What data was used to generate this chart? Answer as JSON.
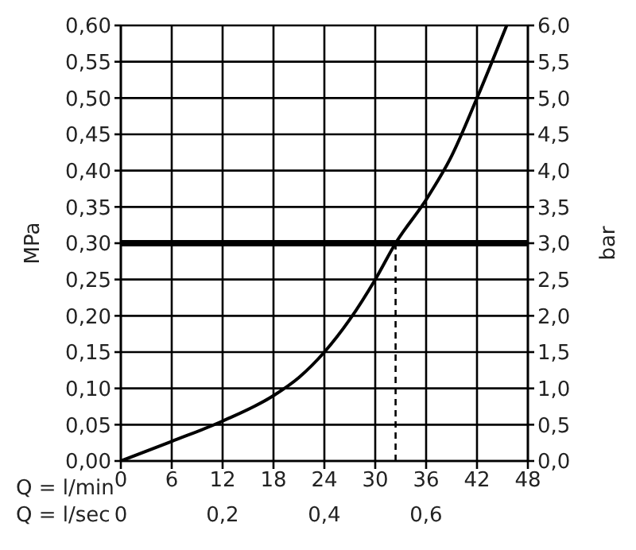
{
  "chart_data": {
    "type": "line",
    "xlabel": "Q = l/min",
    "x2label": "Q = l/sec",
    "ylabel": "MPa",
    "y2label": "bar",
    "series": [
      {
        "color": "#000000",
        "x": [
          0,
          6,
          12,
          18,
          21,
          24,
          27,
          30,
          32.4,
          36,
          39,
          42,
          45.5
        ],
        "values": [
          0,
          0.027,
          0.055,
          0.09,
          0.115,
          0.15,
          0.195,
          0.25,
          0.3,
          0.36,
          0.42,
          0.5,
          0.6
        ]
      }
    ],
    "xlim": [
      0,
      48
    ],
    "xticks": [
      0,
      6,
      12,
      18,
      24,
      30,
      36,
      42,
      48
    ],
    "x2lim": [
      0,
      0.8
    ],
    "x2ticks": [
      0,
      {
        "value": 0.2,
        "label": "0,2"
      },
      {
        "value": 0.4,
        "label": "0,4"
      },
      {
        "value": 0.6,
        "label": "0,6"
      }
    ],
    "ylim": [
      0,
      0.6
    ],
    "yticks": [
      {
        "value": 0,
        "label": "0,00"
      },
      {
        "value": 0.05,
        "label": "0,05"
      },
      {
        "value": 0.1,
        "label": "0,10"
      },
      {
        "value": 0.15,
        "label": "0,15"
      },
      {
        "value": 0.2,
        "label": "0,20"
      },
      {
        "value": 0.25,
        "label": "0,25"
      },
      {
        "value": 0.3,
        "label": "0,30"
      },
      {
        "value": 0.35,
        "label": "0,35"
      },
      {
        "value": 0.4,
        "label": "0,40"
      },
      {
        "value": 0.45,
        "label": "0,45"
      },
      {
        "value": 0.5,
        "label": "0,50"
      },
      {
        "value": 0.55,
        "label": "0,55"
      },
      {
        "value": 0.6,
        "label": "0,60"
      }
    ],
    "y2lim": [
      0,
      6
    ],
    "y2ticks": [
      {
        "value": 0,
        "label": "0,0"
      },
      {
        "value": 0.5,
        "label": "0,5"
      },
      {
        "value": 1,
        "label": "1,0"
      },
      {
        "value": 1.5,
        "label": "1,5"
      },
      {
        "value": 2,
        "label": "2,0"
      },
      {
        "value": 2.5,
        "label": "2,5"
      },
      {
        "value": 3,
        "label": "3,0"
      },
      {
        "value": 3.5,
        "label": "3,5"
      },
      {
        "value": 4,
        "label": "4,0"
      },
      {
        "value": 4.5,
        "label": "4,5"
      },
      {
        "value": 5,
        "label": "5,0"
      },
      {
        "value": 5.5,
        "label": "5,5"
      },
      {
        "value": 6,
        "label": "6,0"
      }
    ],
    "ref_lines": [
      {
        "axis": "y",
        "value": 0.3,
        "color": "#000000",
        "line_style": "solid"
      },
      {
        "axis": "x",
        "value": 32.4,
        "color": "#000000",
        "line_style": "dashed"
      }
    ],
    "grid": true,
    "legend": false,
    "marker": "none",
    "line_style": "solid"
  }
}
